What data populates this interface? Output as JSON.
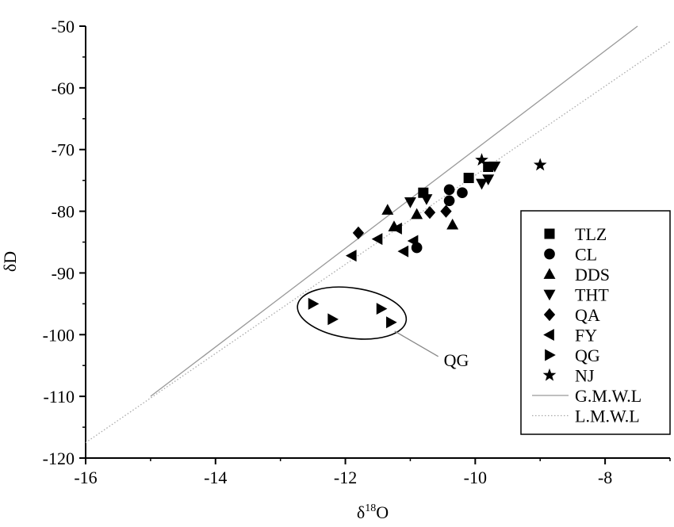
{
  "chart_data": {
    "type": "scatter",
    "title": "",
    "xlabel": "δ18O",
    "xlabel_base": "δ",
    "xlabel_sup": "18",
    "xlabel_tail": "O",
    "ylabel": "δD",
    "xlim": [
      -16,
      -7
    ],
    "ylim": [
      -120,
      -50
    ],
    "x_ticks": [
      -16,
      -14,
      -12,
      -10,
      -8
    ],
    "y_ticks": [
      -50,
      -60,
      -70,
      -80,
      -90,
      -100,
      -110,
      -120
    ],
    "grid": false,
    "legend_position": "right",
    "series": [
      {
        "name": "TLZ",
        "marker": "square",
        "points": [
          [
            -10.8,
            -77.0
          ],
          [
            -10.1,
            -74.6
          ],
          [
            -9.8,
            -72.8
          ]
        ]
      },
      {
        "name": "CL",
        "marker": "circle",
        "points": [
          [
            -10.4,
            -76.5
          ],
          [
            -10.2,
            -77.0
          ],
          [
            -10.4,
            -78.3
          ],
          [
            -10.9,
            -85.9
          ]
        ]
      },
      {
        "name": "DDS",
        "marker": "triangle-up",
        "points": [
          [
            -11.35,
            -79.8
          ],
          [
            -10.9,
            -80.5
          ],
          [
            -10.35,
            -82.2
          ],
          [
            -11.25,
            -82.5
          ]
        ]
      },
      {
        "name": "THT",
        "marker": "triangle-down",
        "points": [
          [
            -11.0,
            -78.5
          ],
          [
            -10.75,
            -78.0
          ],
          [
            -9.9,
            -75.5
          ],
          [
            -9.8,
            -74.8
          ],
          [
            -9.7,
            -72.7
          ]
        ]
      },
      {
        "name": "QA",
        "marker": "diamond",
        "points": [
          [
            -11.8,
            -83.5
          ],
          [
            -10.7,
            -80.2
          ],
          [
            -10.45,
            -80.0
          ]
        ]
      },
      {
        "name": "FY",
        "marker": "triangle-left",
        "points": [
          [
            -11.9,
            -87.2
          ],
          [
            -11.5,
            -84.5
          ],
          [
            -11.2,
            -82.8
          ],
          [
            -11.1,
            -86.5
          ],
          [
            -10.95,
            -84.8
          ]
        ]
      },
      {
        "name": "QG",
        "marker": "triangle-right",
        "points": [
          [
            -12.5,
            -95.0
          ],
          [
            -12.2,
            -97.5
          ],
          [
            -11.45,
            -95.8
          ],
          [
            -11.3,
            -98.0
          ]
        ]
      },
      {
        "name": "NJ",
        "marker": "star",
        "points": [
          [
            -9.9,
            -71.7
          ],
          [
            -9.0,
            -72.5
          ]
        ]
      }
    ],
    "lines": [
      {
        "name": "G.M.W.L",
        "style": "solid",
        "color": "#999999",
        "from": [
          -15,
          -110
        ],
        "to": [
          -7.5,
          -50
        ]
      },
      {
        "name": "L.M.W.L",
        "style": "dotted",
        "color": "#aaaaaa",
        "from": [
          -16,
          -117.5
        ],
        "to": [
          -7,
          -52.5
        ]
      }
    ],
    "annotations": [
      {
        "text": "QG",
        "target_series": "QG"
      }
    ]
  }
}
